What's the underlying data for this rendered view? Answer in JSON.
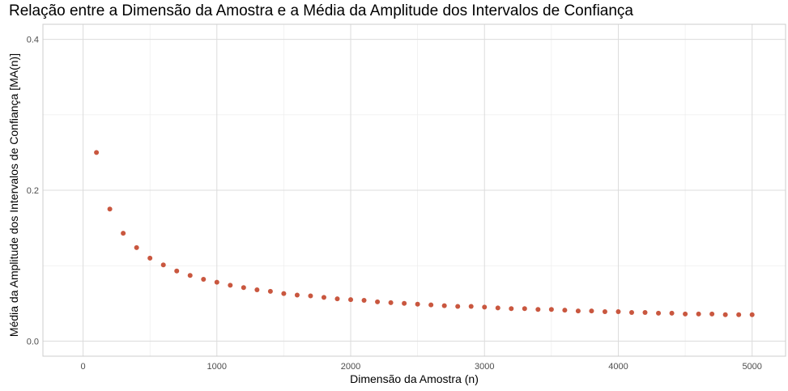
{
  "chart_data": {
    "type": "scatter",
    "title": "Relação entre a Dimensão da Amostra e a Média da Amplitude dos Intervalos de Confiança",
    "xlabel": "Dimensão da Amostra (n)",
    "ylabel": "Média da Amplitude dos Intervalos de Confiança [MA(n)]",
    "xlim": [
      -300,
      5250
    ],
    "ylim": [
      -0.02,
      0.42
    ],
    "xticks": [
      0,
      1000,
      2000,
      3000,
      4000,
      5000
    ],
    "xtick_labels": [
      "0",
      "1000",
      "2000",
      "3000",
      "4000",
      "5000"
    ],
    "yticks": [
      0.0,
      0.2,
      0.4
    ],
    "ytick_labels": [
      "0.0",
      "0.2",
      "0.4"
    ],
    "grid": true,
    "point_color": "#C9573F",
    "series": [
      {
        "x": [
          100,
          200,
          300,
          400,
          500,
          600,
          700,
          800,
          900,
          1000,
          1100,
          1200,
          1300,
          1400,
          1500,
          1600,
          1700,
          1800,
          1900,
          2000,
          2100,
          2200,
          2300,
          2400,
          2500,
          2600,
          2700,
          2800,
          2900,
          3000,
          3100,
          3200,
          3300,
          3400,
          3500,
          3600,
          3700,
          3800,
          3900,
          4000,
          4100,
          4200,
          4300,
          4400,
          4500,
          4600,
          4700,
          4800,
          4900,
          5000
        ],
        "y": [
          0.25,
          0.175,
          0.143,
          0.124,
          0.11,
          0.101,
          0.093,
          0.087,
          0.082,
          0.078,
          0.074,
          0.071,
          0.068,
          0.066,
          0.063,
          0.061,
          0.06,
          0.058,
          0.056,
          0.055,
          0.054,
          0.052,
          0.051,
          0.05,
          0.049,
          0.048,
          0.047,
          0.046,
          0.046,
          0.045,
          0.044,
          0.043,
          0.043,
          0.042,
          0.042,
          0.041,
          0.04,
          0.04,
          0.039,
          0.039,
          0.038,
          0.038,
          0.037,
          0.037,
          0.036,
          0.036,
          0.036,
          0.035,
          0.035,
          0.035
        ]
      }
    ]
  }
}
